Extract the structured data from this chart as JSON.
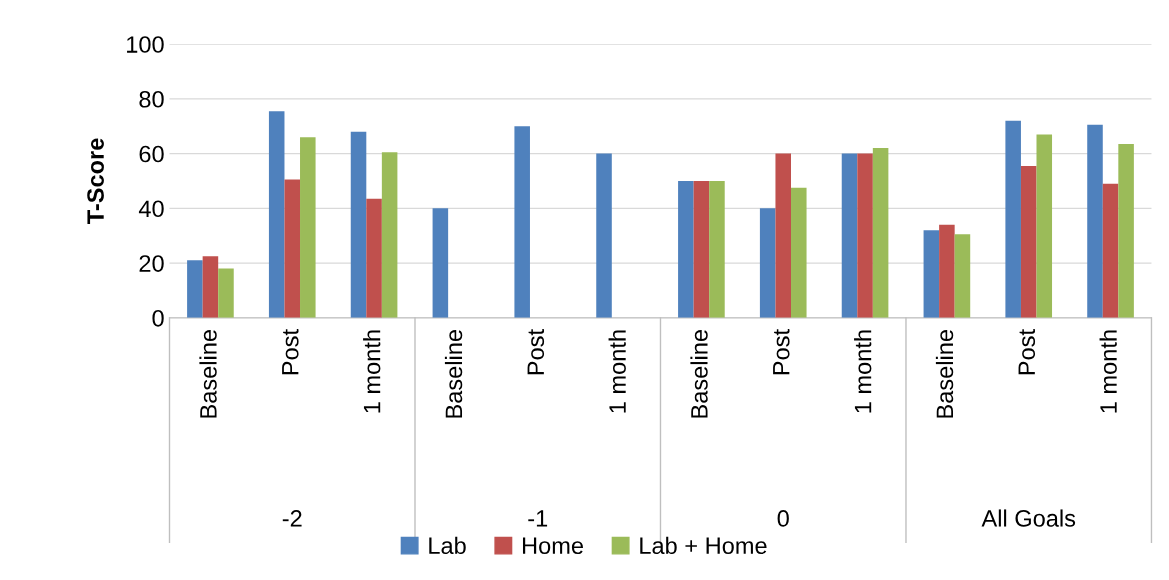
{
  "chart_data": {
    "type": "bar",
    "ylabel": "T-Score",
    "categories": [
      "Baseline",
      "Post",
      "1 month",
      "Baseline",
      "Post",
      "1 month",
      "Baseline",
      "Post",
      "1 month",
      "Baseline",
      "Post",
      "1 month"
    ],
    "annotations": [
      "-2",
      "-1",
      "0",
      "All Goals"
    ],
    "series": [
      {
        "name": "Lab",
        "color": "#4f81bd",
        "values": [
          21,
          75.5,
          68,
          40,
          70,
          60,
          50,
          40,
          60,
          32,
          72,
          70.5
        ]
      },
      {
        "name": "Home",
        "color": "#c0504d",
        "values": [
          22.5,
          50.5,
          43.5,
          null,
          null,
          null,
          50,
          60,
          60,
          34,
          55.5,
          49
        ]
      },
      {
        "name": "Lab + Home",
        "color": "#9bbb59",
        "values": [
          18,
          66,
          60.5,
          null,
          null,
          null,
          50,
          47.5,
          62,
          30.5,
          67,
          63.5
        ]
      }
    ],
    "ylim": [
      0,
      100
    ],
    "yticks": [
      0,
      20,
      40,
      60,
      80,
      100
    ],
    "grid": "y",
    "legend": "bottom"
  }
}
